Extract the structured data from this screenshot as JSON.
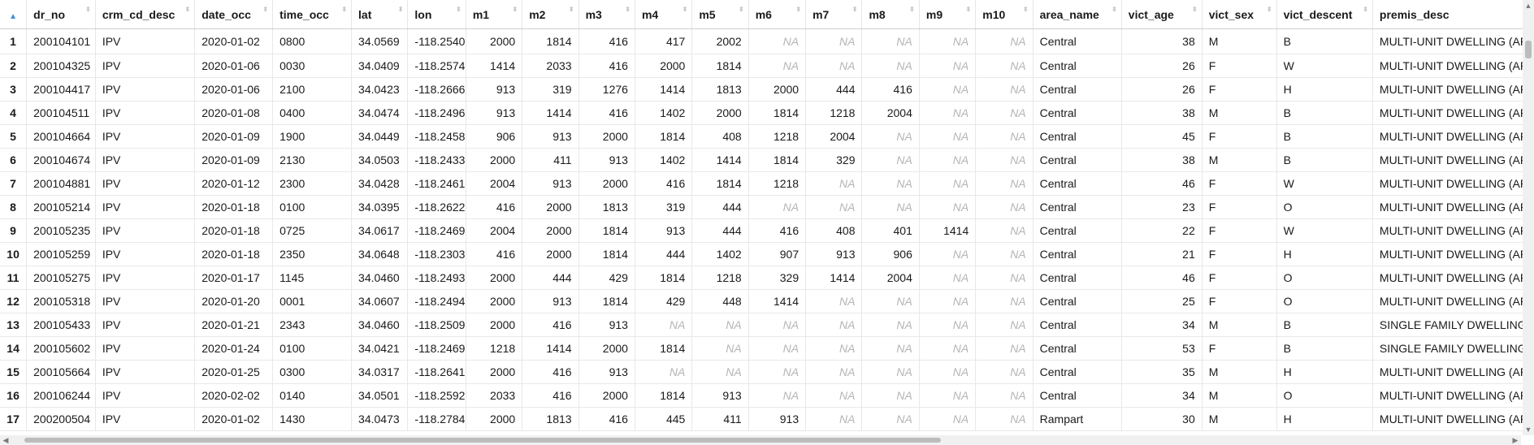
{
  "columns": [
    "dr_no",
    "crm_cd_desc",
    "date_occ",
    "time_occ",
    "lat",
    "lon",
    "m1",
    "m2",
    "m3",
    "m4",
    "m5",
    "m6",
    "m7",
    "m8",
    "m9",
    "m10",
    "area_name",
    "vict_age",
    "vict_sex",
    "vict_descent",
    "premis_desc"
  ],
  "sort_indicator": "▲",
  "caret_glyph": "⬍",
  "rows": [
    [
      "1",
      "200104101",
      "IPV",
      "2020-01-02",
      "0800",
      "34.0569",
      "-118.2540",
      "2000",
      "1814",
      "416",
      "417",
      "2002",
      "NA",
      "NA",
      "NA",
      "NA",
      "NA",
      "Central",
      "38",
      "M",
      "B",
      "MULTI-UNIT DWELLING (APARTMEI"
    ],
    [
      "2",
      "200104325",
      "IPV",
      "2020-01-06",
      "0030",
      "34.0409",
      "-118.2574",
      "1414",
      "2033",
      "416",
      "2000",
      "1814",
      "NA",
      "NA",
      "NA",
      "NA",
      "NA",
      "Central",
      "26",
      "F",
      "W",
      "MULTI-UNIT DWELLING (APARTMEI"
    ],
    [
      "3",
      "200104417",
      "IPV",
      "2020-01-06",
      "2100",
      "34.0423",
      "-118.2666",
      "913",
      "319",
      "1276",
      "1414",
      "1813",
      "2000",
      "444",
      "416",
      "NA",
      "NA",
      "Central",
      "26",
      "F",
      "H",
      "MULTI-UNIT DWELLING (APARTMEI"
    ],
    [
      "4",
      "200104511",
      "IPV",
      "2020-01-08",
      "0400",
      "34.0474",
      "-118.2496",
      "913",
      "1414",
      "416",
      "1402",
      "2000",
      "1814",
      "1218",
      "2004",
      "NA",
      "NA",
      "Central",
      "38",
      "M",
      "B",
      "MULTI-UNIT DWELLING (APARTMEI"
    ],
    [
      "5",
      "200104664",
      "IPV",
      "2020-01-09",
      "1900",
      "34.0449",
      "-118.2458",
      "906",
      "913",
      "2000",
      "1814",
      "408",
      "1218",
      "2004",
      "NA",
      "NA",
      "NA",
      "Central",
      "45",
      "F",
      "B",
      "MULTI-UNIT DWELLING (APARTMEI"
    ],
    [
      "6",
      "200104674",
      "IPV",
      "2020-01-09",
      "2130",
      "34.0503",
      "-118.2433",
      "2000",
      "411",
      "913",
      "1402",
      "1414",
      "1814",
      "329",
      "NA",
      "NA",
      "NA",
      "Central",
      "38",
      "M",
      "B",
      "MULTI-UNIT DWELLING (APARTMEI"
    ],
    [
      "7",
      "200104881",
      "IPV",
      "2020-01-12",
      "2300",
      "34.0428",
      "-118.2461",
      "2004",
      "913",
      "2000",
      "416",
      "1814",
      "1218",
      "NA",
      "NA",
      "NA",
      "NA",
      "Central",
      "46",
      "F",
      "W",
      "MULTI-UNIT DWELLING (APARTMEI"
    ],
    [
      "8",
      "200105214",
      "IPV",
      "2020-01-18",
      "0100",
      "34.0395",
      "-118.2622",
      "416",
      "2000",
      "1813",
      "319",
      "444",
      "NA",
      "NA",
      "NA",
      "NA",
      "NA",
      "Central",
      "23",
      "F",
      "O",
      "MULTI-UNIT DWELLING (APARTMEI"
    ],
    [
      "9",
      "200105235",
      "IPV",
      "2020-01-18",
      "0725",
      "34.0617",
      "-118.2469",
      "2004",
      "2000",
      "1814",
      "913",
      "444",
      "416",
      "408",
      "401",
      "1414",
      "NA",
      "Central",
      "22",
      "F",
      "W",
      "MULTI-UNIT DWELLING (APARTMEI"
    ],
    [
      "10",
      "200105259",
      "IPV",
      "2020-01-18",
      "2350",
      "34.0648",
      "-118.2303",
      "416",
      "2000",
      "1814",
      "444",
      "1402",
      "907",
      "913",
      "906",
      "NA",
      "NA",
      "Central",
      "21",
      "F",
      "H",
      "MULTI-UNIT DWELLING (APARTMEI"
    ],
    [
      "11",
      "200105275",
      "IPV",
      "2020-01-17",
      "1145",
      "34.0460",
      "-118.2493",
      "2000",
      "444",
      "429",
      "1814",
      "1218",
      "329",
      "1414",
      "2004",
      "NA",
      "NA",
      "Central",
      "46",
      "F",
      "O",
      "MULTI-UNIT DWELLING (APARTMEI"
    ],
    [
      "12",
      "200105318",
      "IPV",
      "2020-01-20",
      "0001",
      "34.0607",
      "-118.2494",
      "2000",
      "913",
      "1814",
      "429",
      "448",
      "1414",
      "NA",
      "NA",
      "NA",
      "NA",
      "Central",
      "25",
      "F",
      "O",
      "MULTI-UNIT DWELLING (APARTMEI"
    ],
    [
      "13",
      "200105433",
      "IPV",
      "2020-01-21",
      "2343",
      "34.0460",
      "-118.2509",
      "2000",
      "416",
      "913",
      "NA",
      "NA",
      "NA",
      "NA",
      "NA",
      "NA",
      "NA",
      "Central",
      "34",
      "M",
      "B",
      "SINGLE FAMILY DWELLING"
    ],
    [
      "14",
      "200105602",
      "IPV",
      "2020-01-24",
      "0100",
      "34.0421",
      "-118.2469",
      "1218",
      "1414",
      "2000",
      "1814",
      "NA",
      "NA",
      "NA",
      "NA",
      "NA",
      "NA",
      "Central",
      "53",
      "F",
      "B",
      "SINGLE FAMILY DWELLING"
    ],
    [
      "15",
      "200105664",
      "IPV",
      "2020-01-25",
      "0300",
      "34.0317",
      "-118.2641",
      "2000",
      "416",
      "913",
      "NA",
      "NA",
      "NA",
      "NA",
      "NA",
      "NA",
      "NA",
      "Central",
      "35",
      "M",
      "H",
      "MULTI-UNIT DWELLING (APARTMEI"
    ],
    [
      "16",
      "200106244",
      "IPV",
      "2020-02-02",
      "0140",
      "34.0501",
      "-118.2592",
      "2033",
      "416",
      "2000",
      "1814",
      "913",
      "NA",
      "NA",
      "NA",
      "NA",
      "NA",
      "Central",
      "34",
      "M",
      "O",
      "MULTI-UNIT DWELLING (APARTMEI"
    ],
    [
      "17",
      "200200504",
      "IPV",
      "2020-01-02",
      "1430",
      "34.0473",
      "-118.2784",
      "2000",
      "1813",
      "416",
      "445",
      "411",
      "913",
      "NA",
      "NA",
      "NA",
      "NA",
      "Rampart",
      "30",
      "M",
      "H",
      "MULTI-UNIT DWELLING (APARTMEI"
    ]
  ]
}
